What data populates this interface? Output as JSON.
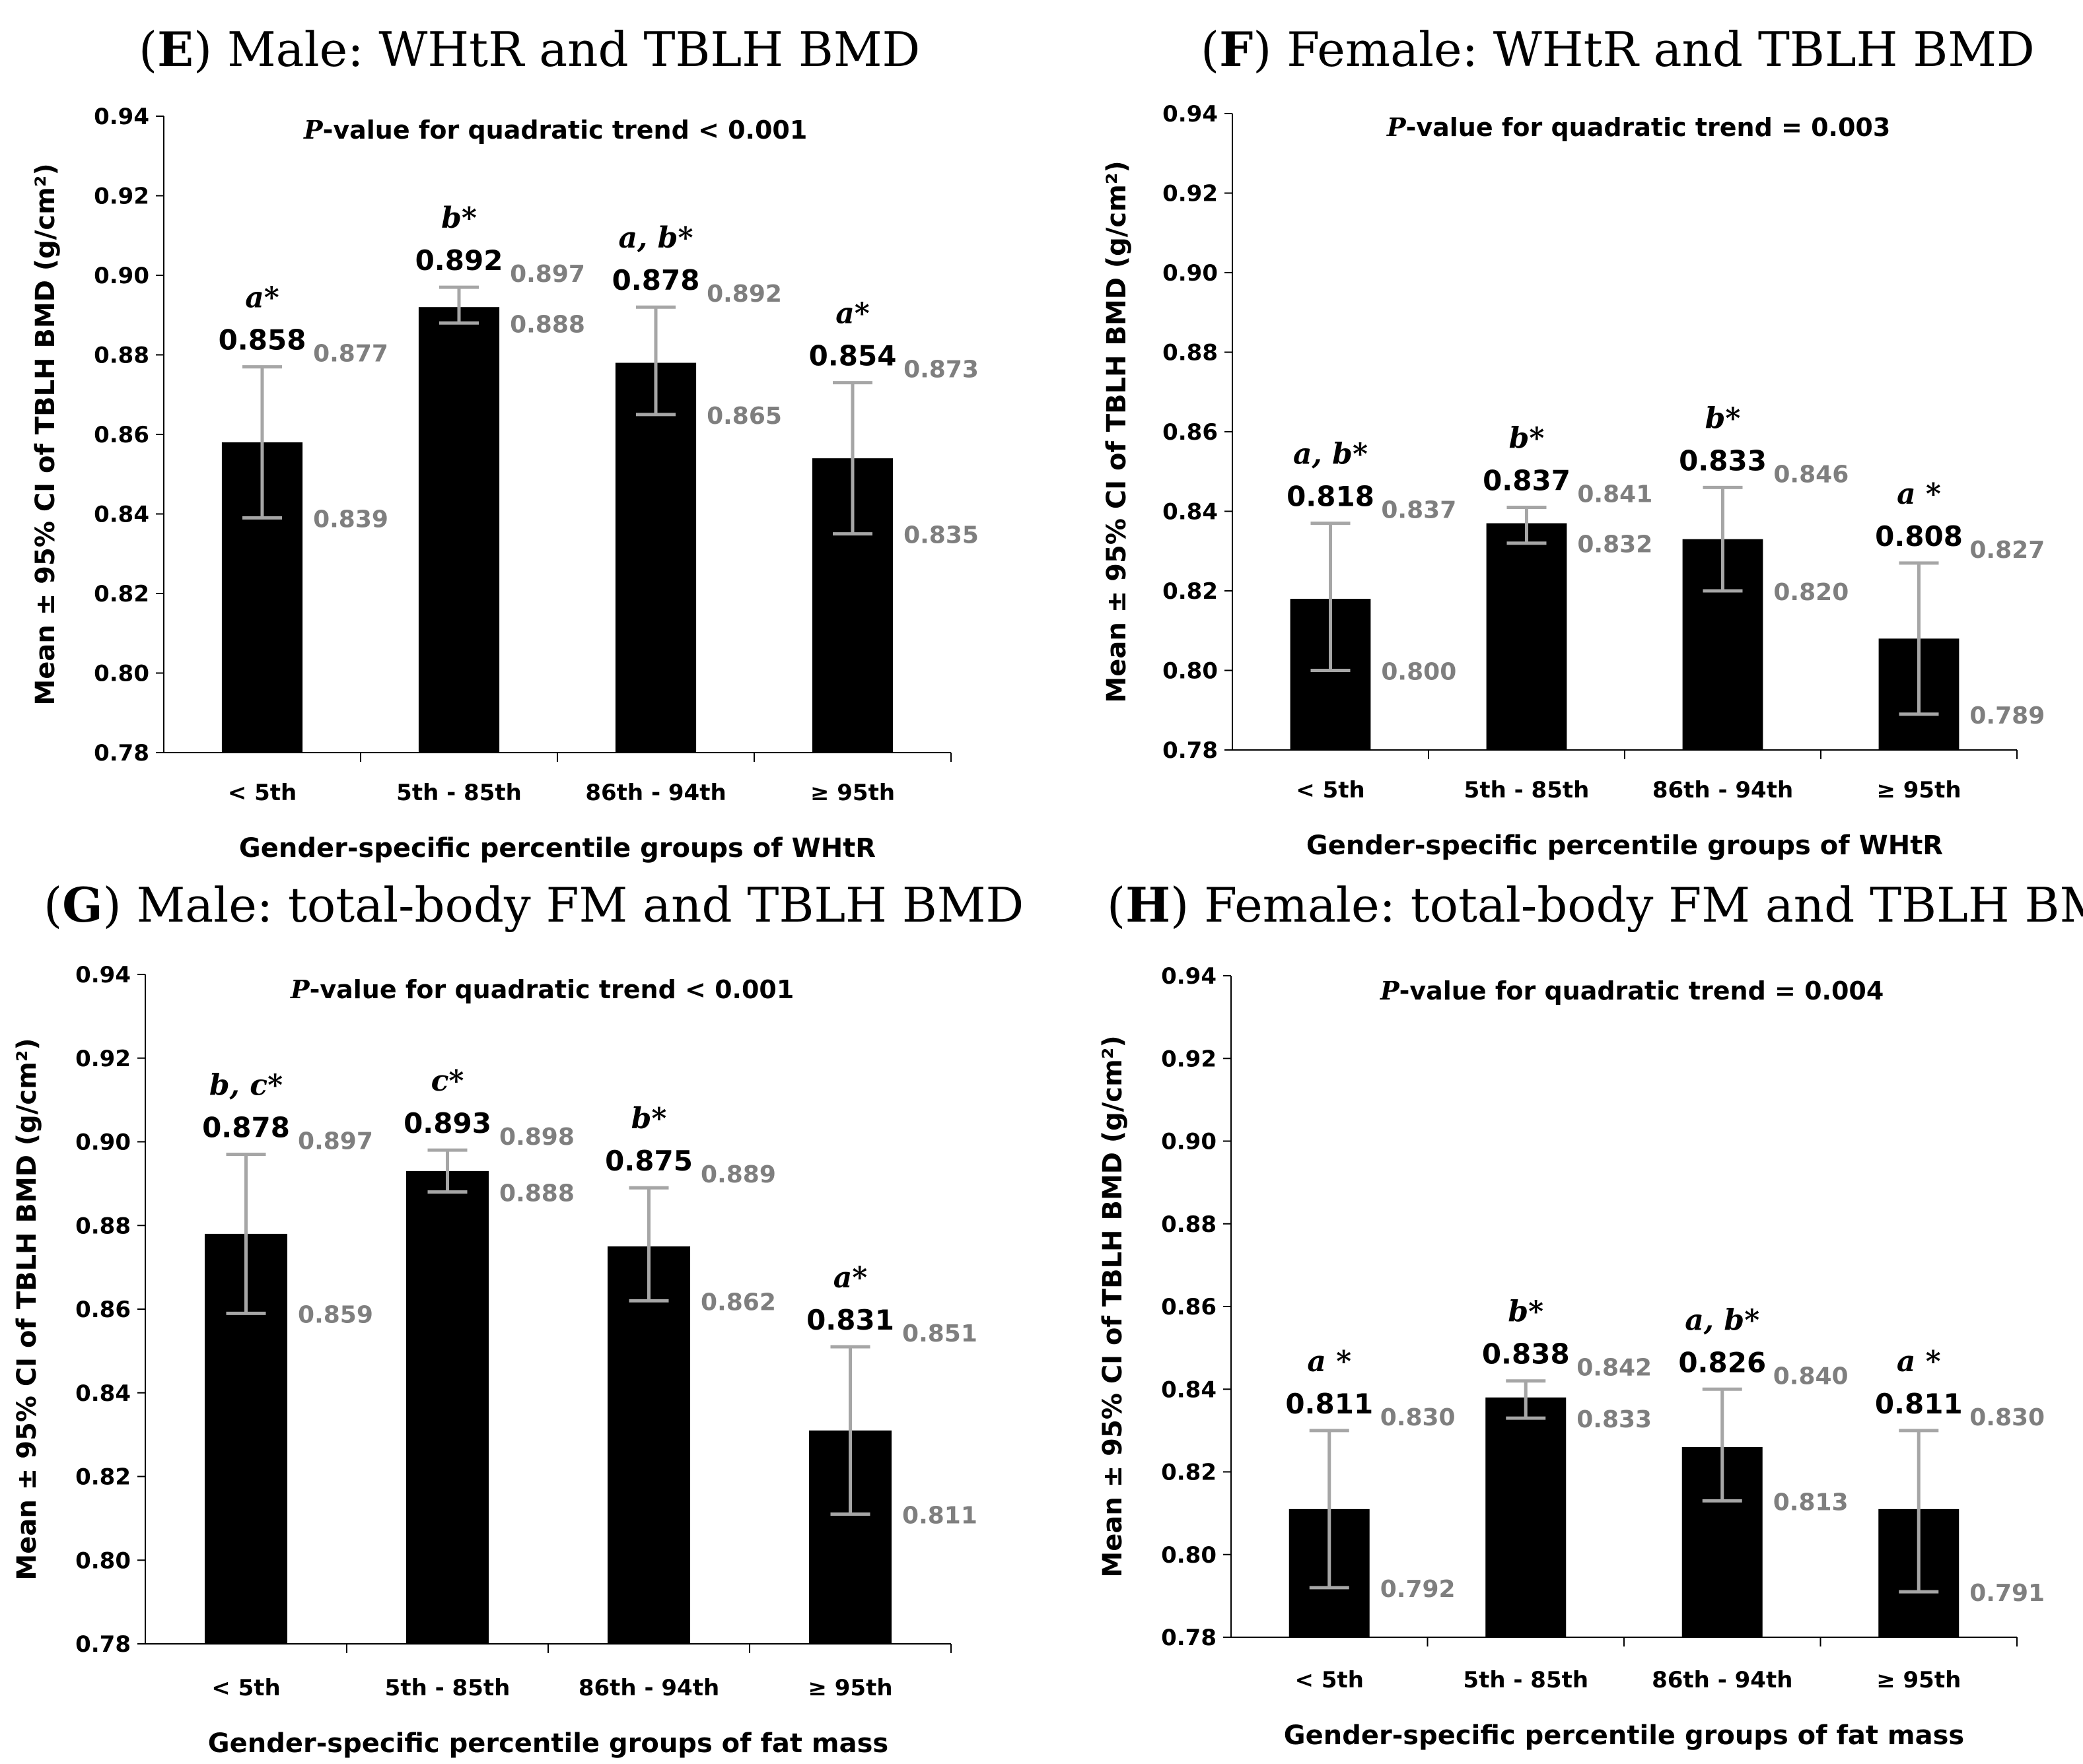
{
  "colors": {
    "bar": "#000000",
    "error": "#a6a6a6",
    "ci_text": "#7f7f7f",
    "axis": "#000000"
  },
  "chart_data": [
    {
      "type": "bar",
      "panel": "E",
      "title": ") Male: WHtR and TBLH BMD",
      "p_label": "P",
      "trend_text": "-value for quadratic trend  < 0.001",
      "ylabel": "Mean ± 95% CI of TBLH BMD (g/cm²)",
      "xlabel": "Gender-specific percentile groups of WHtR",
      "categories": [
        "< 5th",
        "5th - 85th",
        "86th - 94th",
        "≥ 95th"
      ],
      "values": [
        0.858,
        0.892,
        0.878,
        0.854
      ],
      "mean_labels": [
        "0.858",
        "0.892",
        "0.878",
        "0.854"
      ],
      "ci_upper": [
        0.877,
        0.897,
        0.892,
        0.873
      ],
      "ci_lower": [
        0.839,
        0.888,
        0.865,
        0.835
      ],
      "ci_upper_labels": [
        "0.877",
        "0.897",
        "0.892",
        "0.873"
      ],
      "ci_lower_labels": [
        "0.839",
        "0.888",
        "0.865",
        "0.835"
      ],
      "significance": [
        "a*",
        "b*",
        "a, b*",
        "a*"
      ],
      "ylim": [
        0.78,
        0.94
      ],
      "yticks": [
        "0.78",
        "0.80",
        "0.82",
        "0.84",
        "0.86",
        "0.88",
        "0.90",
        "0.92",
        "0.94"
      ]
    },
    {
      "type": "bar",
      "panel": "F",
      "title": ") Female: WHtR and TBLH BMD",
      "p_label": "P",
      "trend_text": "-value for quadratic trend  = 0.003",
      "ylabel": "Mean ± 95% CI of TBLH BMD (g/cm²)",
      "xlabel": "Gender-specific percentile groups of WHtR",
      "categories": [
        "< 5th",
        "5th - 85th",
        "86th - 94th",
        "≥ 95th"
      ],
      "values": [
        0.818,
        0.837,
        0.833,
        0.808
      ],
      "mean_labels": [
        "0.818",
        "0.837",
        "0.833",
        "0.808"
      ],
      "ci_upper": [
        0.837,
        0.841,
        0.846,
        0.827
      ],
      "ci_lower": [
        0.8,
        0.832,
        0.82,
        0.789
      ],
      "ci_upper_labels": [
        "0.837",
        "0.841",
        "0.846",
        "0.827"
      ],
      "ci_lower_labels": [
        "0.800",
        "0.832",
        "0.820",
        "0.789"
      ],
      "significance": [
        "a, b*",
        "b*",
        "b*",
        "a *"
      ],
      "ylim": [
        0.78,
        0.94
      ],
      "yticks": [
        "0.78",
        "0.80",
        "0.82",
        "0.84",
        "0.86",
        "0.88",
        "0.90",
        "0.92",
        "0.94"
      ]
    },
    {
      "type": "bar",
      "panel": "G",
      "title": ") Male: total-body FM and TBLH BMD",
      "p_label": "P",
      "trend_text": "-value for quadratic trend  < 0.001",
      "ylabel": "Mean ± 95% CI of TBLH BMD (g/cm²)",
      "xlabel": "Gender-specific percentile groups of fat mass",
      "categories": [
        "< 5th",
        "5th - 85th",
        "86th - 94th",
        "≥ 95th"
      ],
      "values": [
        0.878,
        0.893,
        0.875,
        0.831
      ],
      "mean_labels": [
        "0.878",
        "0.893",
        "0.875",
        "0.831"
      ],
      "ci_upper": [
        0.897,
        0.898,
        0.889,
        0.851
      ],
      "ci_lower": [
        0.859,
        0.888,
        0.862,
        0.811
      ],
      "ci_upper_labels": [
        "0.897",
        "0.898",
        "0.889",
        "0.851"
      ],
      "ci_lower_labels": [
        "0.859",
        "0.888",
        "0.862",
        "0.811"
      ],
      "significance": [
        "b, c*",
        "c*",
        "b*",
        "a*"
      ],
      "ylim": [
        0.78,
        0.94
      ],
      "yticks": [
        "0.78",
        "0.80",
        "0.82",
        "0.84",
        "0.86",
        "0.88",
        "0.90",
        "0.92",
        "0.94"
      ]
    },
    {
      "type": "bar",
      "panel": "H",
      "title": ") Female: total-body FM and TBLH BMD",
      "p_label": "P",
      "trend_text": "-value for quadratic trend  = 0.004",
      "ylabel": "Mean ± 95% CI of TBLH BMD (g/cm²)",
      "xlabel": "Gender-specific percentile groups of fat mass",
      "categories": [
        "< 5th",
        "5th - 85th",
        "86th - 94th",
        "≥ 95th"
      ],
      "values": [
        0.811,
        0.838,
        0.826,
        0.811
      ],
      "mean_labels": [
        "0.811",
        "0.838",
        "0.826",
        "0.811"
      ],
      "ci_upper": [
        0.83,
        0.842,
        0.84,
        0.83
      ],
      "ci_lower": [
        0.792,
        0.833,
        0.813,
        0.791
      ],
      "ci_upper_labels": [
        "0.830",
        "0.842",
        "0.840",
        "0.830"
      ],
      "ci_lower_labels": [
        "0.792",
        "0.833",
        "0.813",
        "0.791"
      ],
      "significance": [
        "a *",
        "b*",
        "a, b*",
        "a *"
      ],
      "ylim": [
        0.78,
        0.94
      ],
      "yticks": [
        "0.78",
        "0.80",
        "0.82",
        "0.84",
        "0.86",
        "0.88",
        "0.90",
        "0.92",
        "0.94"
      ]
    }
  ]
}
